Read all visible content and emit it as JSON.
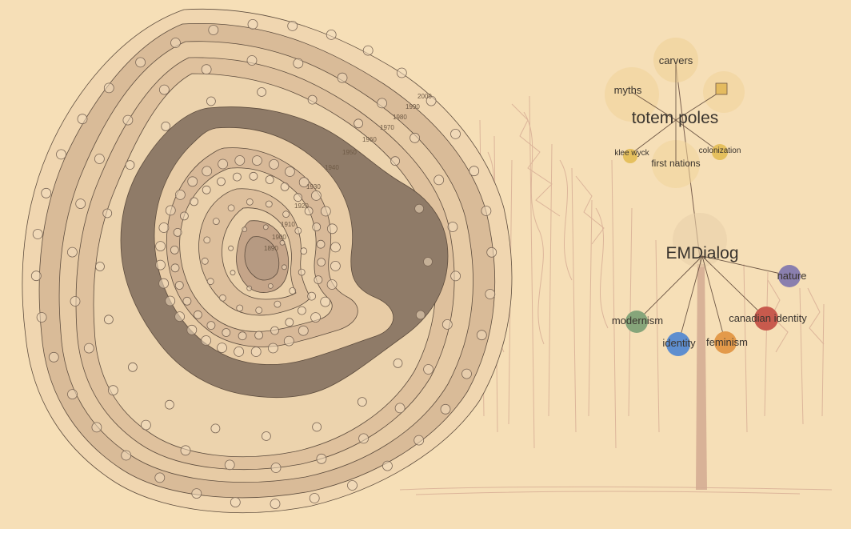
{
  "colors": {
    "background": "#f6dfb7",
    "ring_light": "#ebcfa9",
    "ring_mid": "#d9bb98",
    "ring_dark": "#8f7b68",
    "core": "#b69a82",
    "trunk": "#d2aa92",
    "stroke": "#5e4d3e"
  },
  "rings": {
    "years": [
      "2000",
      "1990",
      "1980",
      "1970",
      "1960",
      "1950",
      "1940",
      "1930",
      "1920",
      "1910",
      "1900",
      "1890"
    ]
  },
  "tree_top": {
    "title": "totem poles",
    "nodes": [
      "carvers",
      "myths",
      "klee wyck",
      "first nations",
      "colonization"
    ],
    "square_color": "#e4bb5f",
    "dot_color": "#e3bd54"
  },
  "tree_bottom": {
    "title": "EMDialog",
    "nodes": [
      {
        "label": "nature",
        "color": "#8a7fae"
      },
      {
        "label": "canadian identity",
        "color": "#c85a4d"
      },
      {
        "label": "modernism",
        "color": "#86a57a"
      },
      {
        "label": "identity",
        "color": "#5e8ecf"
      },
      {
        "label": "feminism",
        "color": "#e39a4b"
      }
    ]
  }
}
